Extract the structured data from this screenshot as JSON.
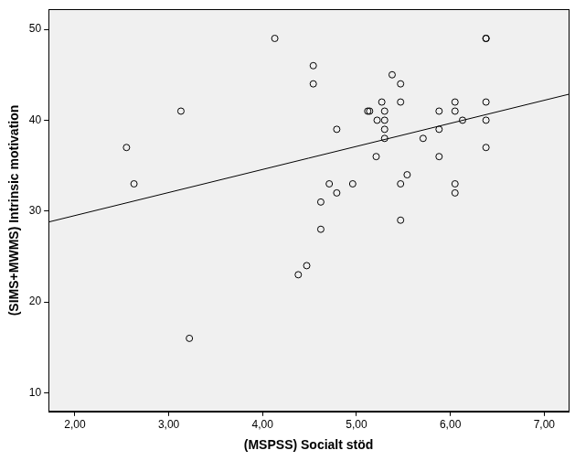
{
  "chart_data": {
    "type": "scatter",
    "x_label": "(MSPSS) Socialt stöd",
    "y_label": "(SIMS+MWMS) Intrinsic motivation",
    "xlim": [
      1.72,
      7.26
    ],
    "ylim": [
      7.96,
      52.2
    ],
    "xticks": [
      {
        "value": 2,
        "label": "2,00"
      },
      {
        "value": 3,
        "label": "3,00"
      },
      {
        "value": 4,
        "label": "4,00"
      },
      {
        "value": 5,
        "label": "5,00"
      },
      {
        "value": 6,
        "label": "6,00"
      },
      {
        "value": 7,
        "label": "7,00"
      }
    ],
    "yticks": [
      10,
      20,
      30,
      40,
      50
    ],
    "grid": false,
    "legend": false,
    "series": [
      {
        "type": "scatter",
        "marker": "circle",
        "color": "#000000",
        "x": [
          2.55,
          2.63,
          3.13,
          3.22,
          4.13,
          4.54,
          4.54,
          4.38,
          4.47,
          4.62,
          4.62,
          4.71,
          4.79,
          4.79,
          4.96,
          5.12,
          5.14,
          5.21,
          5.22,
          5.27,
          5.3,
          5.3,
          5.3,
          5.3,
          5.38,
          5.47,
          5.47,
          5.47,
          5.47,
          5.54,
          5.71,
          5.88,
          5.88,
          5.88,
          6.05,
          6.05,
          6.05,
          6.05,
          6.13,
          6.38,
          6.38,
          6.38,
          6.38,
          6.38
        ],
        "values": [
          37,
          33,
          41,
          16,
          49,
          46,
          44,
          23,
          24,
          31,
          28,
          33,
          39,
          32,
          33,
          41,
          41,
          36,
          40,
          42,
          41,
          40,
          39,
          38,
          45,
          44,
          42,
          33,
          29,
          34,
          38,
          41,
          39,
          36,
          42,
          41,
          33,
          32,
          40,
          49,
          49,
          42,
          40,
          37
        ]
      },
      {
        "type": "line",
        "line_style": "solid",
        "color": "#000000",
        "x": [
          1.72,
          7.26
        ],
        "values": [
          28.8,
          42.85
        ]
      }
    ]
  }
}
